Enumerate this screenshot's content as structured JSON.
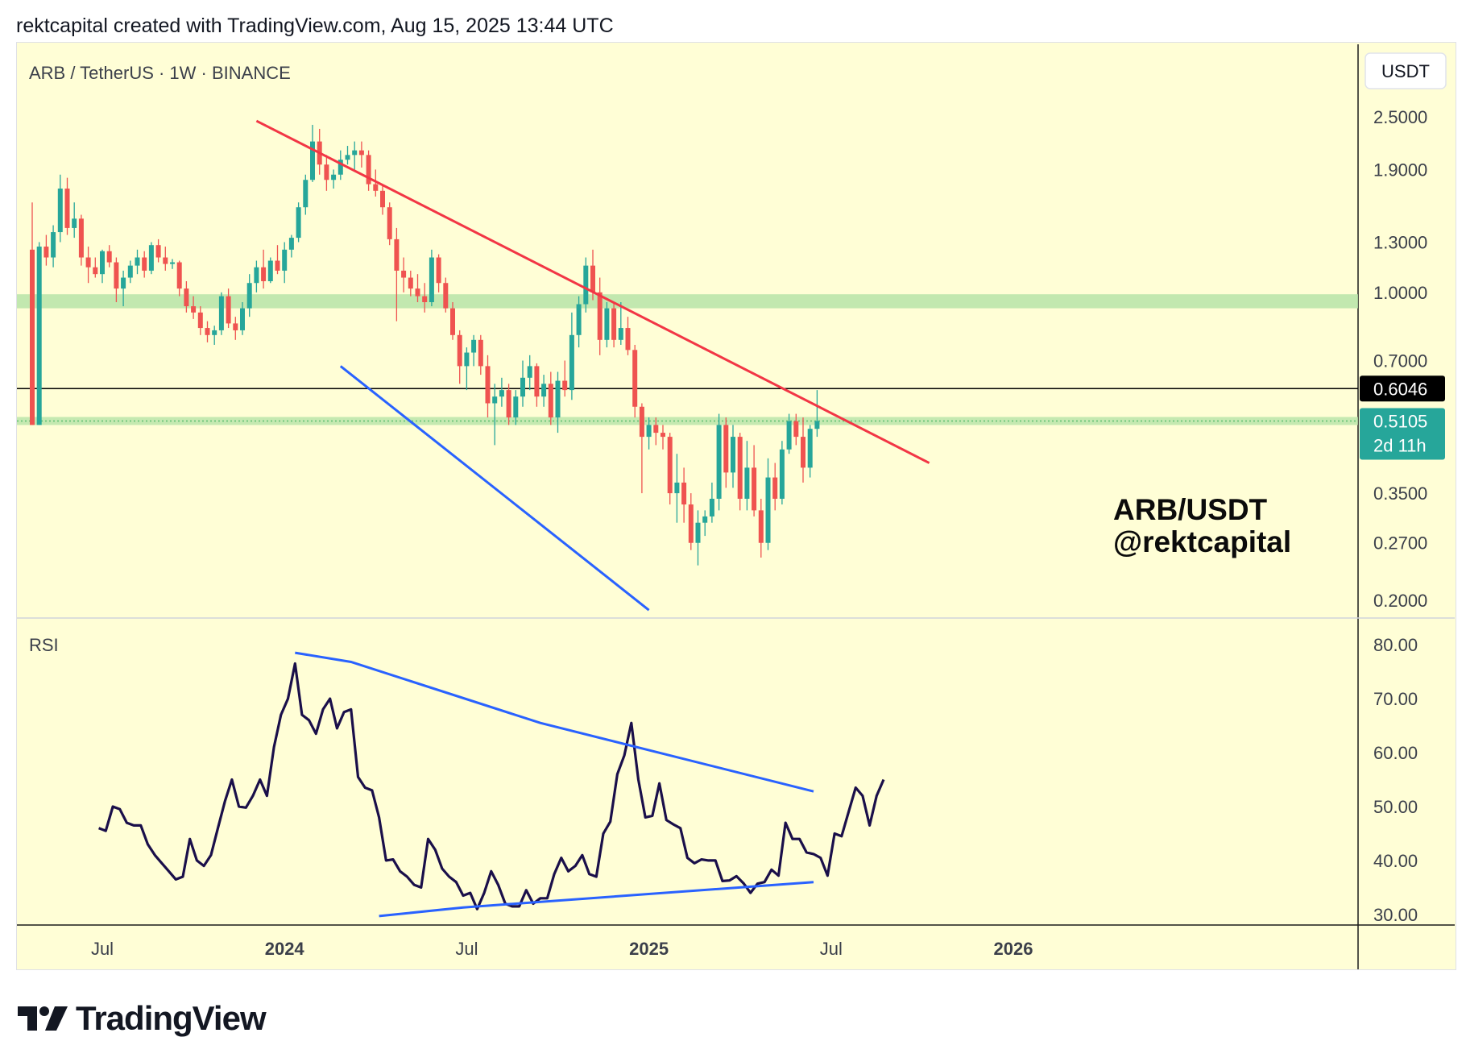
{
  "header": {
    "attribution": "rektcapital created with TradingView.com, Aug 15, 2025 13:44 UTC"
  },
  "footer": {
    "brand": "TradingView",
    "logo_icon": "tradingview-logo-icon"
  },
  "colors": {
    "background": "#fffed6",
    "up_candle": "#26a69a",
    "down_candle": "#ef5350",
    "resistance_line": "#f23645",
    "support_line": "#2962ff",
    "green_zone": "#b7e4a8",
    "rsi_line": "#1a0f4a",
    "rsi_trend": "#2962ff"
  },
  "chart_data": [
    {
      "type": "candlestick",
      "title": "ARB / TetherUS · 1W · BINANCE",
      "currency_button": "USDT",
      "annotation_text": [
        "ARB/USDT",
        "@rektcapital"
      ],
      "y_scale": "log",
      "y_range": [
        0.18,
        2.9
      ],
      "y_ticks": [
        {
          "v": 2.5,
          "label": "2.5000"
        },
        {
          "v": 1.9,
          "label": "1.9000"
        },
        {
          "v": 1.3,
          "label": "1.3000"
        },
        {
          "v": 1.0,
          "label": "1.0000"
        },
        {
          "v": 0.7,
          "label": "0.7000"
        },
        {
          "v": 0.35,
          "label": "0.3500"
        },
        {
          "v": 0.27,
          "label": "0.2700"
        },
        {
          "v": 0.2,
          "label": "0.2000"
        }
      ],
      "horizontal_line": {
        "price": 0.6046,
        "label": "0.6046"
      },
      "current_price": {
        "price": 0.5105,
        "label": "0.5105",
        "countdown": "2d 11h"
      },
      "green_zone": {
        "low": 0.92,
        "high": 0.99
      },
      "x_range": [
        0,
        119
      ],
      "x_ticks": [
        {
          "i": 10,
          "label": "Jul",
          "bold": false
        },
        {
          "i": 36,
          "label": "2024",
          "bold": true
        },
        {
          "i": 62,
          "label": "Jul",
          "bold": false
        },
        {
          "i": 88,
          "label": "2025",
          "bold": true
        },
        {
          "i": 114,
          "label": "Jul",
          "bold": false
        },
        {
          "i": 140,
          "label": "2026",
          "bold": true
        }
      ],
      "resistance_trend": [
        [
          32,
          2.45
        ],
        [
          128,
          0.41
        ]
      ],
      "support_trend": [
        [
          44,
          0.68
        ],
        [
          88,
          0.19
        ]
      ],
      "candles": [
        [
          1.25,
          1.6,
          0.5,
          0.5
        ],
        [
          0.5,
          1.3,
          0.5,
          1.27
        ],
        [
          1.27,
          1.35,
          1.15,
          1.2
        ],
        [
          1.2,
          1.42,
          1.14,
          1.37
        ],
        [
          1.37,
          1.85,
          1.3,
          1.72
        ],
        [
          1.72,
          1.82,
          1.35,
          1.4
        ],
        [
          1.4,
          1.6,
          1.33,
          1.47
        ],
        [
          1.47,
          1.5,
          1.15,
          1.2
        ],
        [
          1.2,
          1.27,
          1.05,
          1.14
        ],
        [
          1.14,
          1.2,
          1.08,
          1.1
        ],
        [
          1.1,
          1.25,
          1.05,
          1.24
        ],
        [
          1.24,
          1.28,
          1.14,
          1.17
        ],
        [
          1.17,
          1.2,
          0.95,
          1.02
        ],
        [
          1.02,
          1.12,
          0.93,
          1.08
        ],
        [
          1.08,
          1.18,
          1.05,
          1.15
        ],
        [
          1.15,
          1.25,
          1.1,
          1.2
        ],
        [
          1.2,
          1.24,
          1.08,
          1.12
        ],
        [
          1.12,
          1.3,
          1.1,
          1.28
        ],
        [
          1.28,
          1.32,
          1.17,
          1.2
        ],
        [
          1.2,
          1.27,
          1.12,
          1.16
        ],
        [
          1.16,
          1.19,
          1.13,
          1.17
        ],
        [
          1.17,
          1.18,
          0.98,
          1.02
        ],
        [
          1.02,
          1.06,
          0.9,
          0.93
        ],
        [
          0.93,
          0.98,
          0.87,
          0.9
        ],
        [
          0.9,
          0.93,
          0.8,
          0.83
        ],
        [
          0.83,
          0.86,
          0.77,
          0.8
        ],
        [
          0.8,
          0.84,
          0.76,
          0.82
        ],
        [
          0.82,
          1.0,
          0.8,
          0.98
        ],
        [
          0.98,
          1.02,
          0.83,
          0.85
        ],
        [
          0.85,
          0.88,
          0.78,
          0.82
        ],
        [
          0.82,
          0.95,
          0.8,
          0.92
        ],
        [
          0.92,
          1.1,
          0.88,
          1.05
        ],
        [
          1.05,
          1.18,
          1.0,
          1.14
        ],
        [
          1.14,
          1.25,
          1.02,
          1.06
        ],
        [
          1.06,
          1.2,
          1.05,
          1.18
        ],
        [
          1.18,
          1.28,
          1.1,
          1.12
        ],
        [
          1.12,
          1.3,
          1.05,
          1.25
        ],
        [
          1.25,
          1.35,
          1.2,
          1.33
        ],
        [
          1.33,
          1.6,
          1.3,
          1.56
        ],
        [
          1.56,
          1.85,
          1.5,
          1.8
        ],
        [
          1.8,
          2.4,
          1.78,
          2.2
        ],
        [
          2.2,
          2.35,
          1.85,
          1.95
        ],
        [
          1.95,
          2.05,
          1.7,
          1.8
        ],
        [
          1.8,
          1.9,
          1.72,
          1.85
        ],
        [
          1.85,
          2.1,
          1.8,
          2.0
        ],
        [
          2.0,
          2.15,
          1.95,
          2.05
        ],
        [
          2.05,
          2.2,
          1.9,
          2.1
        ],
        [
          2.1,
          2.2,
          1.92,
          2.05
        ],
        [
          2.05,
          2.1,
          1.7,
          1.76
        ],
        [
          1.76,
          1.9,
          1.65,
          1.7
        ],
        [
          1.7,
          1.75,
          1.5,
          1.56
        ],
        [
          1.56,
          1.6,
          1.28,
          1.32
        ],
        [
          1.32,
          1.4,
          0.86,
          1.12
        ],
        [
          1.12,
          1.2,
          1.0,
          1.08
        ],
        [
          1.08,
          1.12,
          0.98,
          1.02
        ],
        [
          1.02,
          1.1,
          0.95,
          0.98
        ],
        [
          0.98,
          1.05,
          0.9,
          0.95
        ],
        [
          0.95,
          1.25,
          0.93,
          1.2
        ],
        [
          1.2,
          1.22,
          1.0,
          1.05
        ],
        [
          1.05,
          1.08,
          0.9,
          0.92
        ],
        [
          0.92,
          0.95,
          0.78,
          0.8
        ],
        [
          0.8,
          0.82,
          0.62,
          0.68
        ],
        [
          0.68,
          0.75,
          0.6,
          0.73
        ],
        [
          0.73,
          0.8,
          0.68,
          0.78
        ],
        [
          0.78,
          0.8,
          0.65,
          0.68
        ],
        [
          0.68,
          0.72,
          0.52,
          0.56
        ],
        [
          0.56,
          0.62,
          0.45,
          0.58
        ],
        [
          0.58,
          0.64,
          0.55,
          0.6
        ],
        [
          0.6,
          0.62,
          0.5,
          0.52
        ],
        [
          0.52,
          0.6,
          0.5,
          0.58
        ],
        [
          0.58,
          0.7,
          0.55,
          0.64
        ],
        [
          0.64,
          0.72,
          0.6,
          0.68
        ],
        [
          0.68,
          0.69,
          0.55,
          0.58
        ],
        [
          0.58,
          0.65,
          0.55,
          0.62
        ],
        [
          0.62,
          0.66,
          0.5,
          0.52
        ],
        [
          0.52,
          0.66,
          0.48,
          0.63
        ],
        [
          0.63,
          0.7,
          0.58,
          0.6
        ],
        [
          0.6,
          0.9,
          0.57,
          0.8
        ],
        [
          0.8,
          0.98,
          0.75,
          0.94
        ],
        [
          0.94,
          1.2,
          0.9,
          1.15
        ],
        [
          1.15,
          1.25,
          0.96,
          1.0
        ],
        [
          1.0,
          1.08,
          0.72,
          0.78
        ],
        [
          0.78,
          0.95,
          0.75,
          0.92
        ],
        [
          0.92,
          0.95,
          0.75,
          0.78
        ],
        [
          0.78,
          0.95,
          0.76,
          0.83
        ],
        [
          0.83,
          0.88,
          0.72,
          0.74
        ],
        [
          0.74,
          0.76,
          0.52,
          0.55
        ],
        [
          0.55,
          0.56,
          0.35,
          0.47
        ],
        [
          0.47,
          0.52,
          0.44,
          0.5
        ],
        [
          0.5,
          0.52,
          0.45,
          0.48
        ],
        [
          0.48,
          0.5,
          0.44,
          0.47
        ],
        [
          0.47,
          0.48,
          0.33,
          0.35
        ],
        [
          0.35,
          0.43,
          0.3,
          0.37
        ],
        [
          0.37,
          0.4,
          0.3,
          0.33
        ],
        [
          0.33,
          0.35,
          0.26,
          0.27
        ],
        [
          0.27,
          0.32,
          0.24,
          0.3
        ],
        [
          0.3,
          0.32,
          0.28,
          0.31
        ],
        [
          0.31,
          0.37,
          0.3,
          0.34
        ],
        [
          0.34,
          0.53,
          0.32,
          0.5
        ],
        [
          0.5,
          0.52,
          0.36,
          0.39
        ],
        [
          0.39,
          0.5,
          0.36,
          0.47
        ],
        [
          0.47,
          0.48,
          0.32,
          0.34
        ],
        [
          0.34,
          0.46,
          0.32,
          0.4
        ],
        [
          0.4,
          0.45,
          0.31,
          0.32
        ],
        [
          0.32,
          0.34,
          0.25,
          0.27
        ],
        [
          0.27,
          0.42,
          0.26,
          0.38
        ],
        [
          0.38,
          0.41,
          0.32,
          0.34
        ],
        [
          0.34,
          0.46,
          0.33,
          0.44
        ],
        [
          0.44,
          0.53,
          0.43,
          0.51
        ],
        [
          0.51,
          0.53,
          0.45,
          0.47
        ],
        [
          0.47,
          0.52,
          0.37,
          0.4
        ],
        [
          0.4,
          0.5,
          0.38,
          0.49
        ],
        [
          0.49,
          0.6,
          0.47,
          0.5105
        ]
      ]
    },
    {
      "type": "line",
      "title": "RSI",
      "y_range": [
        27,
        83
      ],
      "y_ticks": [
        80,
        70,
        60,
        50,
        40,
        30
      ],
      "y_tick_labels": [
        "80.00",
        "70.00",
        "60.00",
        "50.00",
        "40.00",
        "30.00"
      ],
      "series": [
        {
          "values": [
            46,
            45.5,
            50,
            49.5,
            47,
            46.5,
            46.5,
            43,
            41,
            39.5,
            38,
            36.5,
            37,
            44,
            40,
            39,
            41,
            46,
            51,
            55,
            50,
            49.8,
            52,
            55,
            52,
            61,
            67,
            70,
            76.5,
            67,
            66,
            63.5,
            68,
            70,
            64.5,
            67.5,
            68,
            55.5,
            53.5,
            53,
            48,
            40,
            40.2,
            38,
            37,
            35.5,
            35,
            44,
            42,
            38.5,
            37,
            36,
            33.5,
            34,
            31,
            34,
            38,
            35.5,
            32,
            31.5,
            31.5,
            34.5,
            32,
            33,
            33,
            37.5,
            40.5,
            38,
            39,
            41,
            37.5,
            37,
            45,
            47.2,
            56,
            59.5,
            65.5,
            55,
            48,
            48.3,
            54.3,
            47.5,
            46.7,
            46,
            40.5,
            39.5,
            40.2,
            40,
            40,
            36.2,
            36.3,
            37.1,
            35.8,
            34,
            35.7,
            36,
            38.3,
            37.2,
            47,
            44,
            44,
            41.5,
            41.2,
            40.5,
            37.2,
            45,
            44.5,
            49,
            53.5,
            52,
            46.5,
            52,
            55
          ]
        }
      ],
      "trend_upper": [
        [
          28,
          78.5
        ],
        [
          36,
          76.8
        ],
        [
          63,
          65.5
        ],
        [
          102,
          52.8
        ]
      ],
      "trend_lower": [
        [
          40,
          29.7
        ],
        [
          52,
          31.3
        ],
        [
          102,
          36
        ]
      ]
    }
  ]
}
